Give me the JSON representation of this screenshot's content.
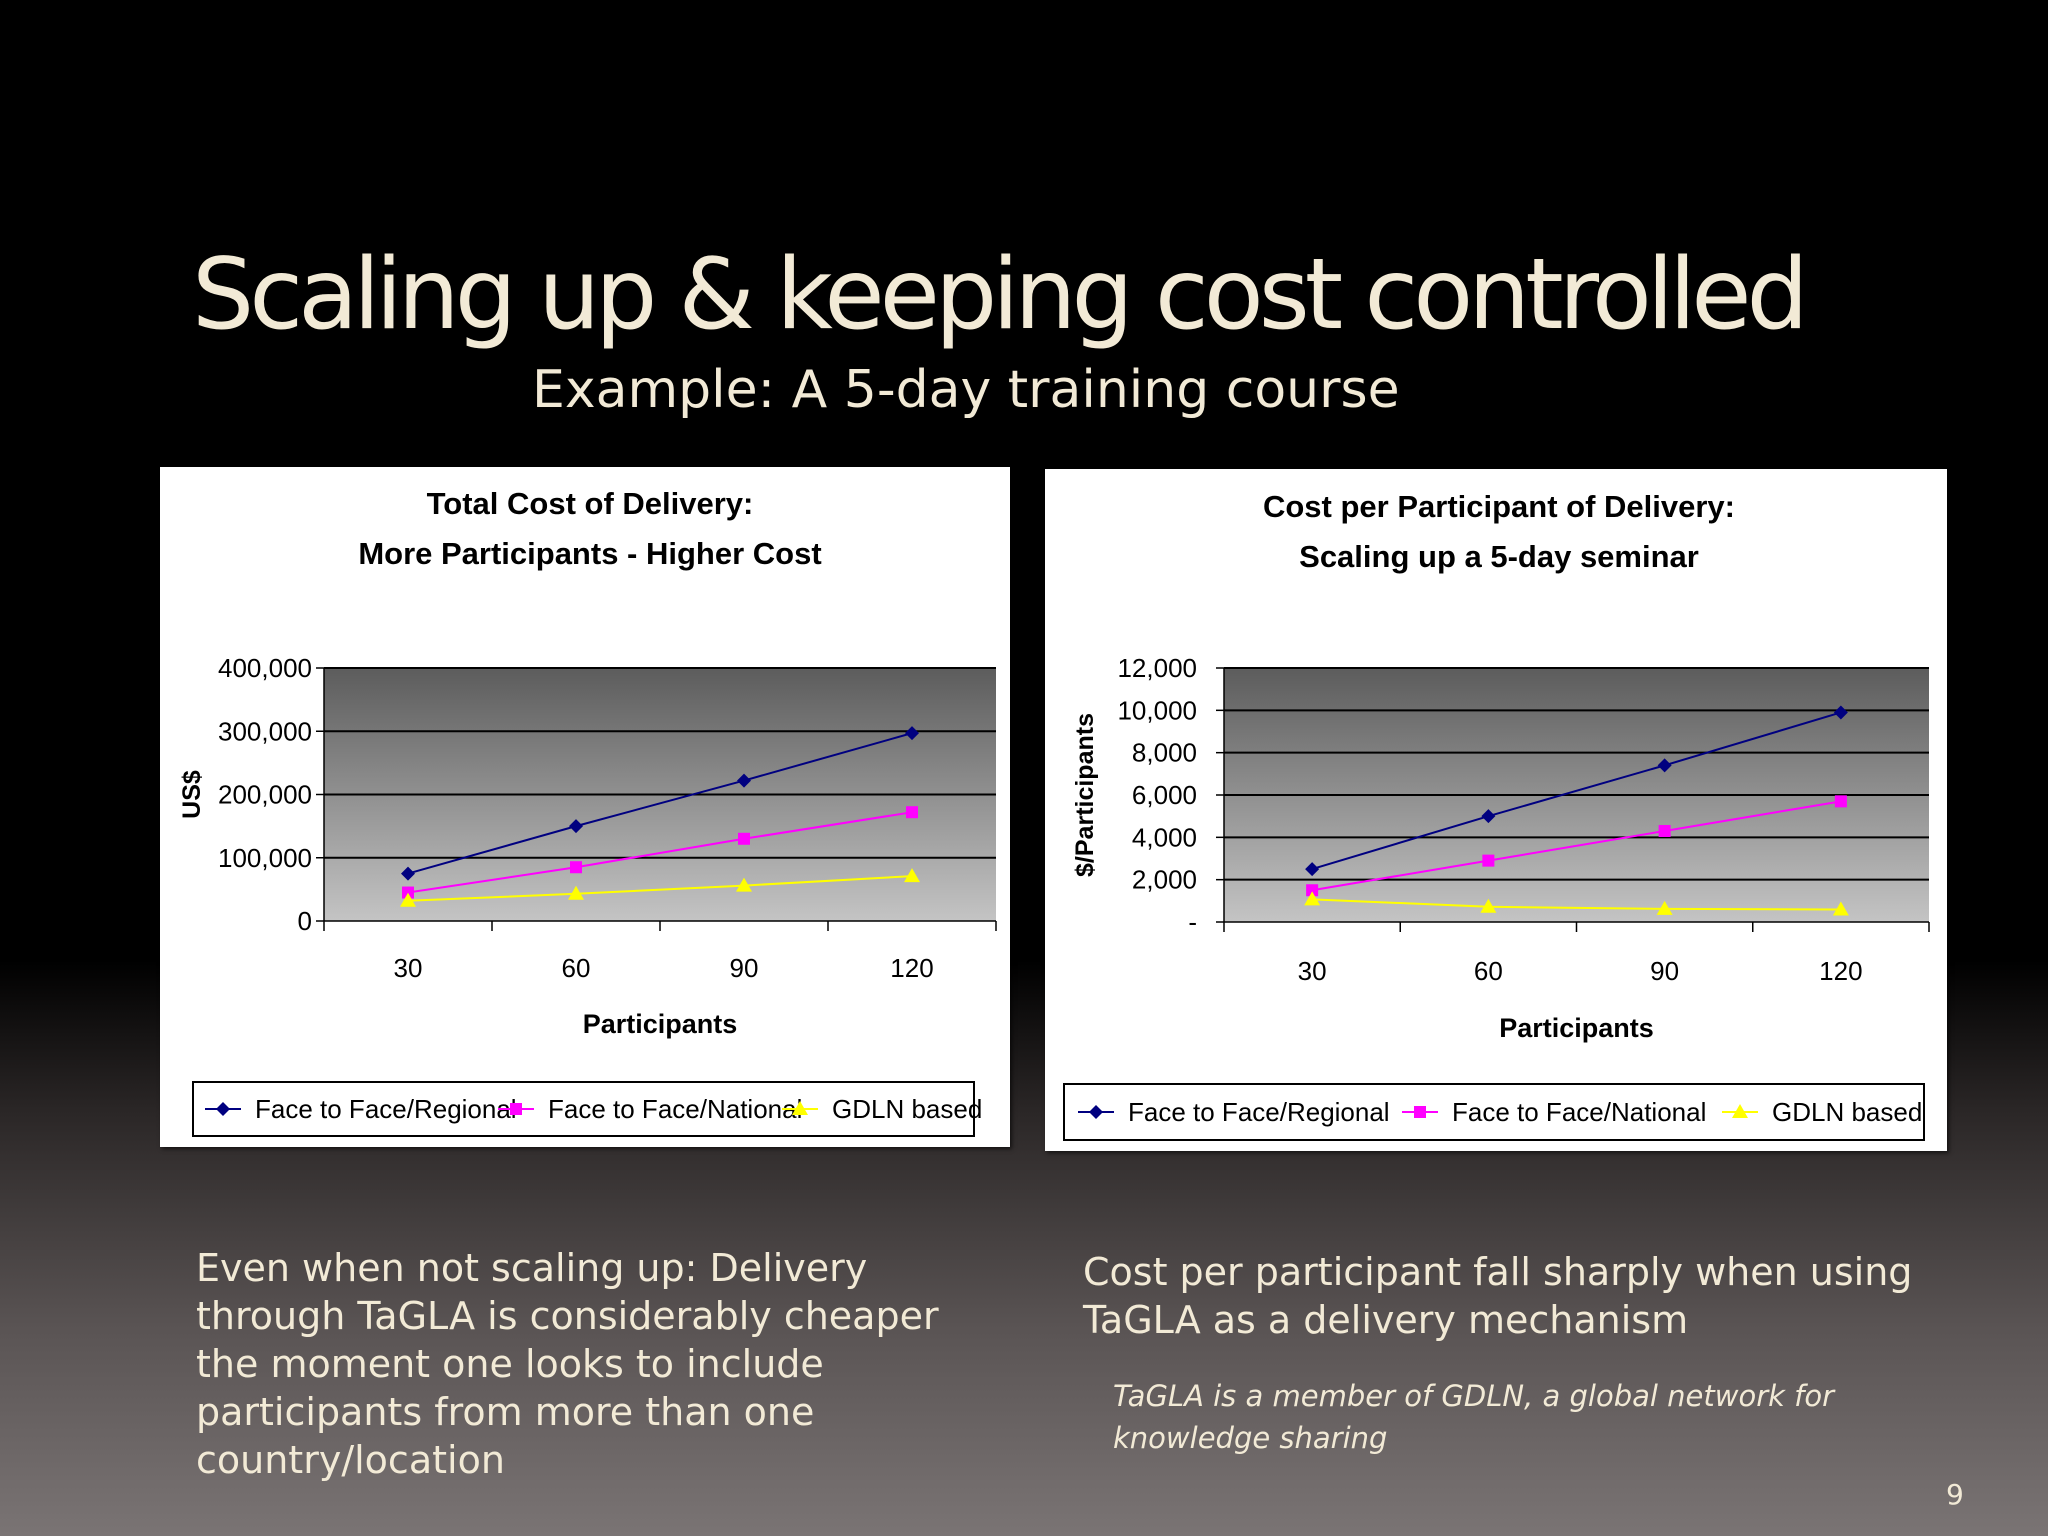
{
  "slide": {
    "title": "Scaling up & keeping cost controlled",
    "subtitle": "Example: A 5-day training course",
    "left_text": "Even when not scaling up: Delivery through TaGLA is considerably cheaper the moment one looks to include participants from more than one country/location",
    "right_text": "Cost per participant fall sharply when using TaGLA as a delivery mechanism",
    "note": "TaGLA is a member of GDLN, a global network for knowledge sharing",
    "page_number": "9"
  },
  "colors": {
    "regional": "#000080",
    "national": "#ff00ff",
    "gdln": "#ffff00"
  },
  "chart_data": [
    {
      "type": "line",
      "title": [
        "Total Cost of Delivery:",
        "More Participants - Higher Cost"
      ],
      "xlabel": "Participants",
      "ylabel": "US$",
      "categories": [
        "30",
        "60",
        "90",
        "120"
      ],
      "ylim": [
        0,
        400000
      ],
      "yticks": [
        0,
        100000,
        200000,
        300000,
        400000
      ],
      "ytick_labels": [
        "0",
        "100,000",
        "200,000",
        "300,000",
        "400,000"
      ],
      "legend_position": "bottom",
      "series": [
        {
          "name": "Face to Face/Regional",
          "marker": "diamond",
          "values": [
            75000,
            150000,
            222000,
            297000
          ]
        },
        {
          "name": "Face to Face/National",
          "marker": "square",
          "values": [
            45000,
            85000,
            130000,
            172000
          ]
        },
        {
          "name": "GDLN based",
          "marker": "triangle",
          "values": [
            32000,
            43000,
            56000,
            71000
          ]
        }
      ]
    },
    {
      "type": "line",
      "title": [
        "Cost per Participant of Delivery:",
        "Scaling up a 5-day seminar"
      ],
      "xlabel": "Participants",
      "ylabel": "$/Participants",
      "categories": [
        "30",
        "60",
        "90",
        "120"
      ],
      "ylim": [
        0,
        12000
      ],
      "yticks": [
        0,
        2000,
        4000,
        6000,
        8000,
        10000,
        12000
      ],
      "ytick_labels": [
        "-",
        "2,000",
        "4,000",
        "6,000",
        "8,000",
        "10,000",
        "12,000"
      ],
      "legend_position": "bottom",
      "series": [
        {
          "name": "Face to Face/Regional",
          "marker": "diamond",
          "values": [
            2500,
            5000,
            7400,
            9900
          ]
        },
        {
          "name": "Face to Face/National",
          "marker": "square",
          "values": [
            1500,
            2900,
            4300,
            5700
          ]
        },
        {
          "name": "GDLN based",
          "marker": "triangle",
          "values": [
            1070,
            720,
            620,
            590
          ]
        }
      ]
    }
  ]
}
